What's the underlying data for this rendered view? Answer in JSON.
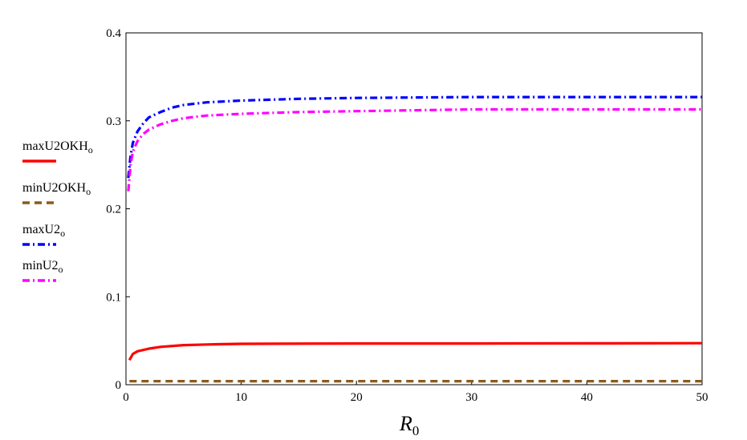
{
  "chart_data": {
    "type": "line",
    "xlabel": {
      "base": "R",
      "sub": "0"
    },
    "ylabel": "",
    "xlim": [
      0,
      50
    ],
    "ylim": [
      0,
      0.4
    ],
    "xticks": [
      "0",
      "10",
      "20",
      "30",
      "40",
      "50"
    ],
    "yticks": [
      "0",
      "0.1",
      "0.2",
      "0.3",
      "0.4"
    ],
    "legend_position": "left",
    "series": [
      {
        "name": "maxU2OKH",
        "sub": "o",
        "color": "#ff0000",
        "style": "solid",
        "x": [
          0.3,
          0.6,
          1,
          2,
          3,
          5,
          8,
          10,
          20,
          30,
          40,
          50
        ],
        "y": [
          0.028,
          0.035,
          0.038,
          0.041,
          0.043,
          0.045,
          0.046,
          0.0465,
          0.0468,
          0.0468,
          0.047,
          0.0472
        ]
      },
      {
        "name": "minU2OKH",
        "sub": "o",
        "color": "#8b5a1a",
        "style": "dash",
        "x": [
          0.3,
          1,
          5,
          10,
          20,
          30,
          40,
          50
        ],
        "y": [
          0.004,
          0.004,
          0.004,
          0.004,
          0.004,
          0.004,
          0.004,
          0.004
        ]
      },
      {
        "name": "maxU2",
        "sub": "o",
        "color": "#0000ff",
        "style": "dashdot",
        "x": [
          0.2,
          0.4,
          0.6,
          1,
          1.5,
          2,
          3,
          4,
          5,
          7,
          10,
          15,
          20,
          30,
          40,
          50
        ],
        "y": [
          0.235,
          0.26,
          0.275,
          0.288,
          0.297,
          0.304,
          0.31,
          0.315,
          0.318,
          0.321,
          0.323,
          0.325,
          0.326,
          0.327,
          0.327,
          0.327
        ]
      },
      {
        "name": "minU2",
        "sub": "o",
        "color": "#ff00ff",
        "style": "dashdot",
        "x": [
          0.2,
          0.4,
          0.6,
          1,
          1.5,
          2,
          3,
          4,
          5,
          7,
          10,
          15,
          20,
          30,
          40,
          50
        ],
        "y": [
          0.22,
          0.25,
          0.265,
          0.277,
          0.285,
          0.29,
          0.296,
          0.3,
          0.303,
          0.306,
          0.308,
          0.31,
          0.311,
          0.313,
          0.313,
          0.313
        ]
      }
    ]
  }
}
